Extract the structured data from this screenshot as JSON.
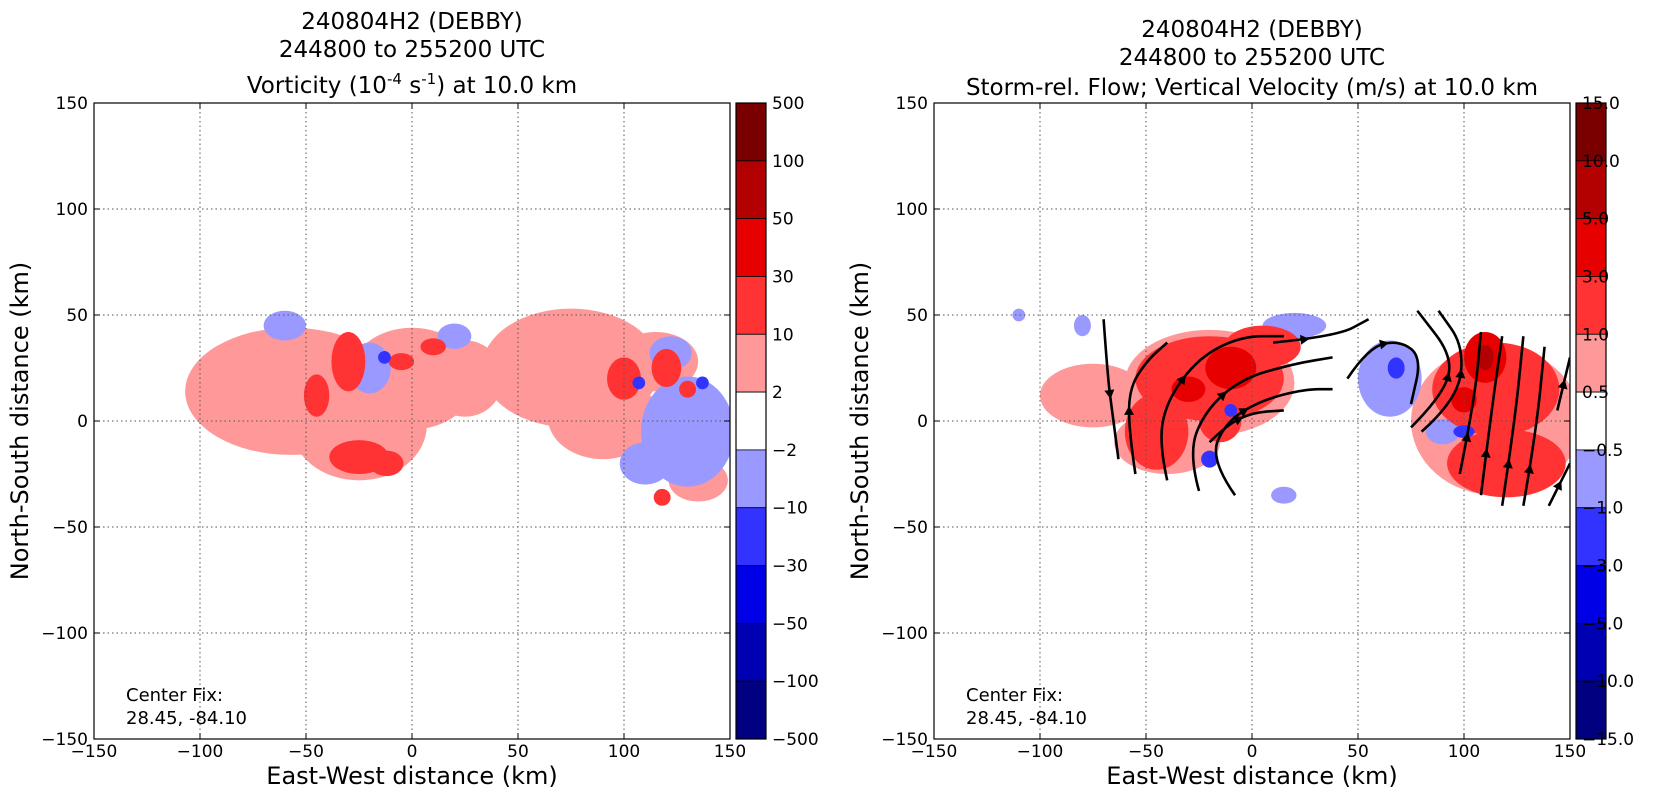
{
  "chart_data": [
    {
      "type": "heatmap",
      "title_lines": [
        "240804H2 (DEBBY)",
        "244800 to 255200 UTC"
      ],
      "title_field": {
        "prefix": "Vorticity (10",
        "exp1": "-4",
        "mid": " s",
        "exp2": "-1",
        "suffix": ") at 10.0 km"
      },
      "xlabel": "East-West distance (km)",
      "ylabel": "North-South distance (km)",
      "xlim": [
        -150,
        150
      ],
      "ylim": [
        -150,
        150
      ],
      "xticks": [
        "−150",
        "−100",
        "−50",
        "0",
        "50",
        "100",
        "150"
      ],
      "yticks": [
        "−150",
        "−100",
        "−50",
        "0",
        "50",
        "100",
        "150"
      ],
      "grid": true,
      "annotation": [
        "Center Fix:",
        "28.45, -84.10"
      ],
      "colorbar": {
        "labels": [
          "500",
          "100",
          "50",
          "30",
          "10",
          "2",
          "−2",
          "−10",
          "−30",
          "−50",
          "−100",
          "−500"
        ],
        "colors": [
          "#7a0000",
          "#b30000",
          "#e60000",
          "#ff3333",
          "#ff9999",
          "#ffffff",
          "#9999ff",
          "#3333ff",
          "#0000e6",
          "#0000b3",
          "#000080"
        ]
      },
      "field_blobs": [
        {
          "x": -57,
          "y": 14,
          "rx": 50,
          "ry": 30,
          "level": 1
        },
        {
          "x": -25,
          "y": -2,
          "rx": 32,
          "ry": 26,
          "level": 1
        },
        {
          "x": 0,
          "y": 20,
          "rx": 30,
          "ry": 24,
          "level": 1
        },
        {
          "x": 25,
          "y": 20,
          "rx": 18,
          "ry": 18,
          "level": 1
        },
        {
          "x": 75,
          "y": 25,
          "rx": 42,
          "ry": 28,
          "level": 1
        },
        {
          "x": 90,
          "y": 2,
          "rx": 26,
          "ry": 20,
          "level": 1
        },
        {
          "x": 135,
          "y": -28,
          "rx": 14,
          "ry": 10,
          "level": 1
        },
        {
          "x": 115,
          "y": 28,
          "rx": 20,
          "ry": 14,
          "level": 1
        },
        {
          "x": -30,
          "y": 28,
          "rx": 8,
          "ry": 14,
          "level": 2
        },
        {
          "x": -25,
          "y": -17,
          "rx": 14,
          "ry": 8,
          "level": 2
        },
        {
          "x": -12,
          "y": -20,
          "rx": 8,
          "ry": 6,
          "level": 2
        },
        {
          "x": -45,
          "y": 12,
          "rx": 6,
          "ry": 10,
          "level": 2
        },
        {
          "x": -5,
          "y": 28,
          "rx": 6,
          "ry": 4,
          "level": 2
        },
        {
          "x": 10,
          "y": 35,
          "rx": 6,
          "ry": 4,
          "level": 2
        },
        {
          "x": 100,
          "y": 20,
          "rx": 8,
          "ry": 10,
          "level": 2
        },
        {
          "x": 120,
          "y": 25,
          "rx": 7,
          "ry": 9,
          "level": 2
        },
        {
          "x": 130,
          "y": 15,
          "rx": 4,
          "ry": 4,
          "level": 2
        },
        {
          "x": 118,
          "y": -36,
          "rx": 4,
          "ry": 4,
          "level": 2
        },
        {
          "x": -60,
          "y": 45,
          "rx": 10,
          "ry": 7,
          "level": -1
        },
        {
          "x": -20,
          "y": 25,
          "rx": 10,
          "ry": 12,
          "level": -1
        },
        {
          "x": 20,
          "y": 40,
          "rx": 8,
          "ry": 6,
          "level": -1
        },
        {
          "x": 130,
          "y": -5,
          "rx": 22,
          "ry": 26,
          "level": -1
        },
        {
          "x": 110,
          "y": -20,
          "rx": 12,
          "ry": 10,
          "level": -1
        },
        {
          "x": 122,
          "y": 32,
          "rx": 10,
          "ry": 8,
          "level": -1
        },
        {
          "x": -13,
          "y": 30,
          "rx": 3,
          "ry": 3,
          "level": -2
        },
        {
          "x": 107,
          "y": 18,
          "rx": 3,
          "ry": 3,
          "level": -2
        },
        {
          "x": 137,
          "y": 18,
          "rx": 3,
          "ry": 3,
          "level": -2
        }
      ]
    },
    {
      "type": "heatmap",
      "title_lines": [
        "240804H2 (DEBBY)",
        "244800 to 255200 UTC",
        "Storm-rel. Flow; Vertical Velocity (m/s) at 10.0 km"
      ],
      "xlabel": "East-West distance (km)",
      "ylabel": "North-South distance (km)",
      "xlim": [
        -150,
        150
      ],
      "ylim": [
        -150,
        150
      ],
      "xticks": [
        "−150",
        "−100",
        "−50",
        "0",
        "50",
        "100",
        "150"
      ],
      "yticks": [
        "−150",
        "−100",
        "−50",
        "0",
        "50",
        "100",
        "150"
      ],
      "grid": true,
      "annotation": [
        "Center Fix:",
        "28.45, -84.10"
      ],
      "colorbar": {
        "labels": [
          "15.0",
          "10.0",
          "5.0",
          "3.0",
          "1.0",
          "0.5",
          "−0.5",
          "−1.0",
          "−3.0",
          "−5.0",
          "−10.0",
          "−15.0"
        ],
        "colors": [
          "#7a0000",
          "#b30000",
          "#e60000",
          "#ff3333",
          "#ff9999",
          "#ffffff",
          "#9999ff",
          "#3333ff",
          "#0000e6",
          "#0000b3",
          "#000080"
        ]
      },
      "field_blobs": [
        {
          "x": -75,
          "y": 12,
          "rx": 25,
          "ry": 15,
          "level": 1
        },
        {
          "x": -20,
          "y": 18,
          "rx": 40,
          "ry": 25,
          "level": 1
        },
        {
          "x": 115,
          "y": 0,
          "rx": 40,
          "ry": 35,
          "level": 1
        },
        {
          "x": -40,
          "y": -10,
          "rx": 25,
          "ry": 15,
          "level": 1
        },
        {
          "x": -20,
          "y": 20,
          "rx": 35,
          "ry": 20,
          "level": 2
        },
        {
          "x": -45,
          "y": -5,
          "rx": 15,
          "ry": 18,
          "level": 2
        },
        {
          "x": 5,
          "y": 35,
          "rx": 18,
          "ry": 10,
          "level": 2
        },
        {
          "x": 115,
          "y": 15,
          "rx": 30,
          "ry": 22,
          "level": 2
        },
        {
          "x": 120,
          "y": -20,
          "rx": 28,
          "ry": 16,
          "level": 2
        },
        {
          "x": -15,
          "y": 0,
          "rx": 10,
          "ry": 10,
          "level": 2
        },
        {
          "x": -10,
          "y": 25,
          "rx": 12,
          "ry": 10,
          "level": 3
        },
        {
          "x": 110,
          "y": 30,
          "rx": 10,
          "ry": 12,
          "level": 3
        },
        {
          "x": -30,
          "y": 15,
          "rx": 8,
          "ry": 6,
          "level": 3
        },
        {
          "x": 100,
          "y": 10,
          "rx": 6,
          "ry": 6,
          "level": 3
        },
        {
          "x": 110,
          "y": 30,
          "rx": 4,
          "ry": 6,
          "level": 4
        },
        {
          "x": 20,
          "y": 45,
          "rx": 15,
          "ry": 6,
          "level": -1
        },
        {
          "x": 65,
          "y": 20,
          "rx": 15,
          "ry": 18,
          "level": -1
        },
        {
          "x": 90,
          "y": -5,
          "rx": 8,
          "ry": 6,
          "level": -1
        },
        {
          "x": -110,
          "y": 50,
          "rx": 3,
          "ry": 3,
          "level": -1
        },
        {
          "x": -80,
          "y": 45,
          "rx": 4,
          "ry": 5,
          "level": -1
        },
        {
          "x": 15,
          "y": -35,
          "rx": 6,
          "ry": 4,
          "level": -1
        },
        {
          "x": -20,
          "y": -18,
          "rx": 4,
          "ry": 4,
          "level": -2
        },
        {
          "x": -10,
          "y": 5,
          "rx": 3,
          "ry": 3,
          "level": -2
        },
        {
          "x": 68,
          "y": 25,
          "rx": 4,
          "ry": 5,
          "level": -2
        },
        {
          "x": 100,
          "y": -5,
          "rx": 5,
          "ry": 3,
          "level": -2
        }
      ],
      "streamlines": [
        [
          [
            -70,
            48
          ],
          [
            -68,
            20
          ],
          [
            -66,
            5
          ],
          [
            -63,
            -18
          ]
        ],
        [
          [
            -55,
            -25
          ],
          [
            -58,
            -5
          ],
          [
            -58,
            15
          ],
          [
            -50,
            28
          ],
          [
            -40,
            37
          ]
        ],
        [
          [
            -40,
            -28
          ],
          [
            -44,
            -10
          ],
          [
            -40,
            10
          ],
          [
            -25,
            30
          ],
          [
            -5,
            40
          ],
          [
            15,
            40
          ]
        ],
        [
          [
            -25,
            -33
          ],
          [
            -30,
            -15
          ],
          [
            -22,
            5
          ],
          [
            -5,
            20
          ],
          [
            20,
            27
          ],
          [
            38,
            30
          ]
        ],
        [
          [
            -8,
            -35
          ],
          [
            -20,
            -18
          ],
          [
            -12,
            0
          ],
          [
            5,
            10
          ],
          [
            25,
            15
          ],
          [
            38,
            15
          ]
        ],
        [
          [
            -20,
            -10
          ],
          [
            -12,
            -2
          ],
          [
            0,
            4
          ],
          [
            15,
            5
          ]
        ],
        [
          [
            10,
            37
          ],
          [
            40,
            40
          ],
          [
            55,
            48
          ]
        ],
        [
          [
            45,
            20
          ],
          [
            55,
            35
          ],
          [
            70,
            38
          ],
          [
            80,
            30
          ],
          [
            75,
            8
          ]
        ],
        [
          [
            75,
            -3
          ],
          [
            90,
            12
          ],
          [
            95,
            30
          ],
          [
            78,
            52
          ]
        ],
        [
          [
            80,
            -5
          ],
          [
            97,
            10
          ],
          [
            100,
            35
          ],
          [
            88,
            52
          ]
        ],
        [
          [
            98,
            -25
          ],
          [
            105,
            10
          ],
          [
            108,
            42
          ]
        ],
        [
          [
            108,
            -35
          ],
          [
            113,
            5
          ],
          [
            118,
            40
          ]
        ],
        [
          [
            118,
            -40
          ],
          [
            124,
            0
          ],
          [
            128,
            40
          ]
        ],
        [
          [
            128,
            -40
          ],
          [
            134,
            -5
          ],
          [
            138,
            35
          ]
        ],
        [
          [
            140,
            -40
          ],
          [
            150,
            -20
          ]
        ],
        [
          [
            144,
            5
          ],
          [
            150,
            30
          ]
        ]
      ]
    }
  ]
}
